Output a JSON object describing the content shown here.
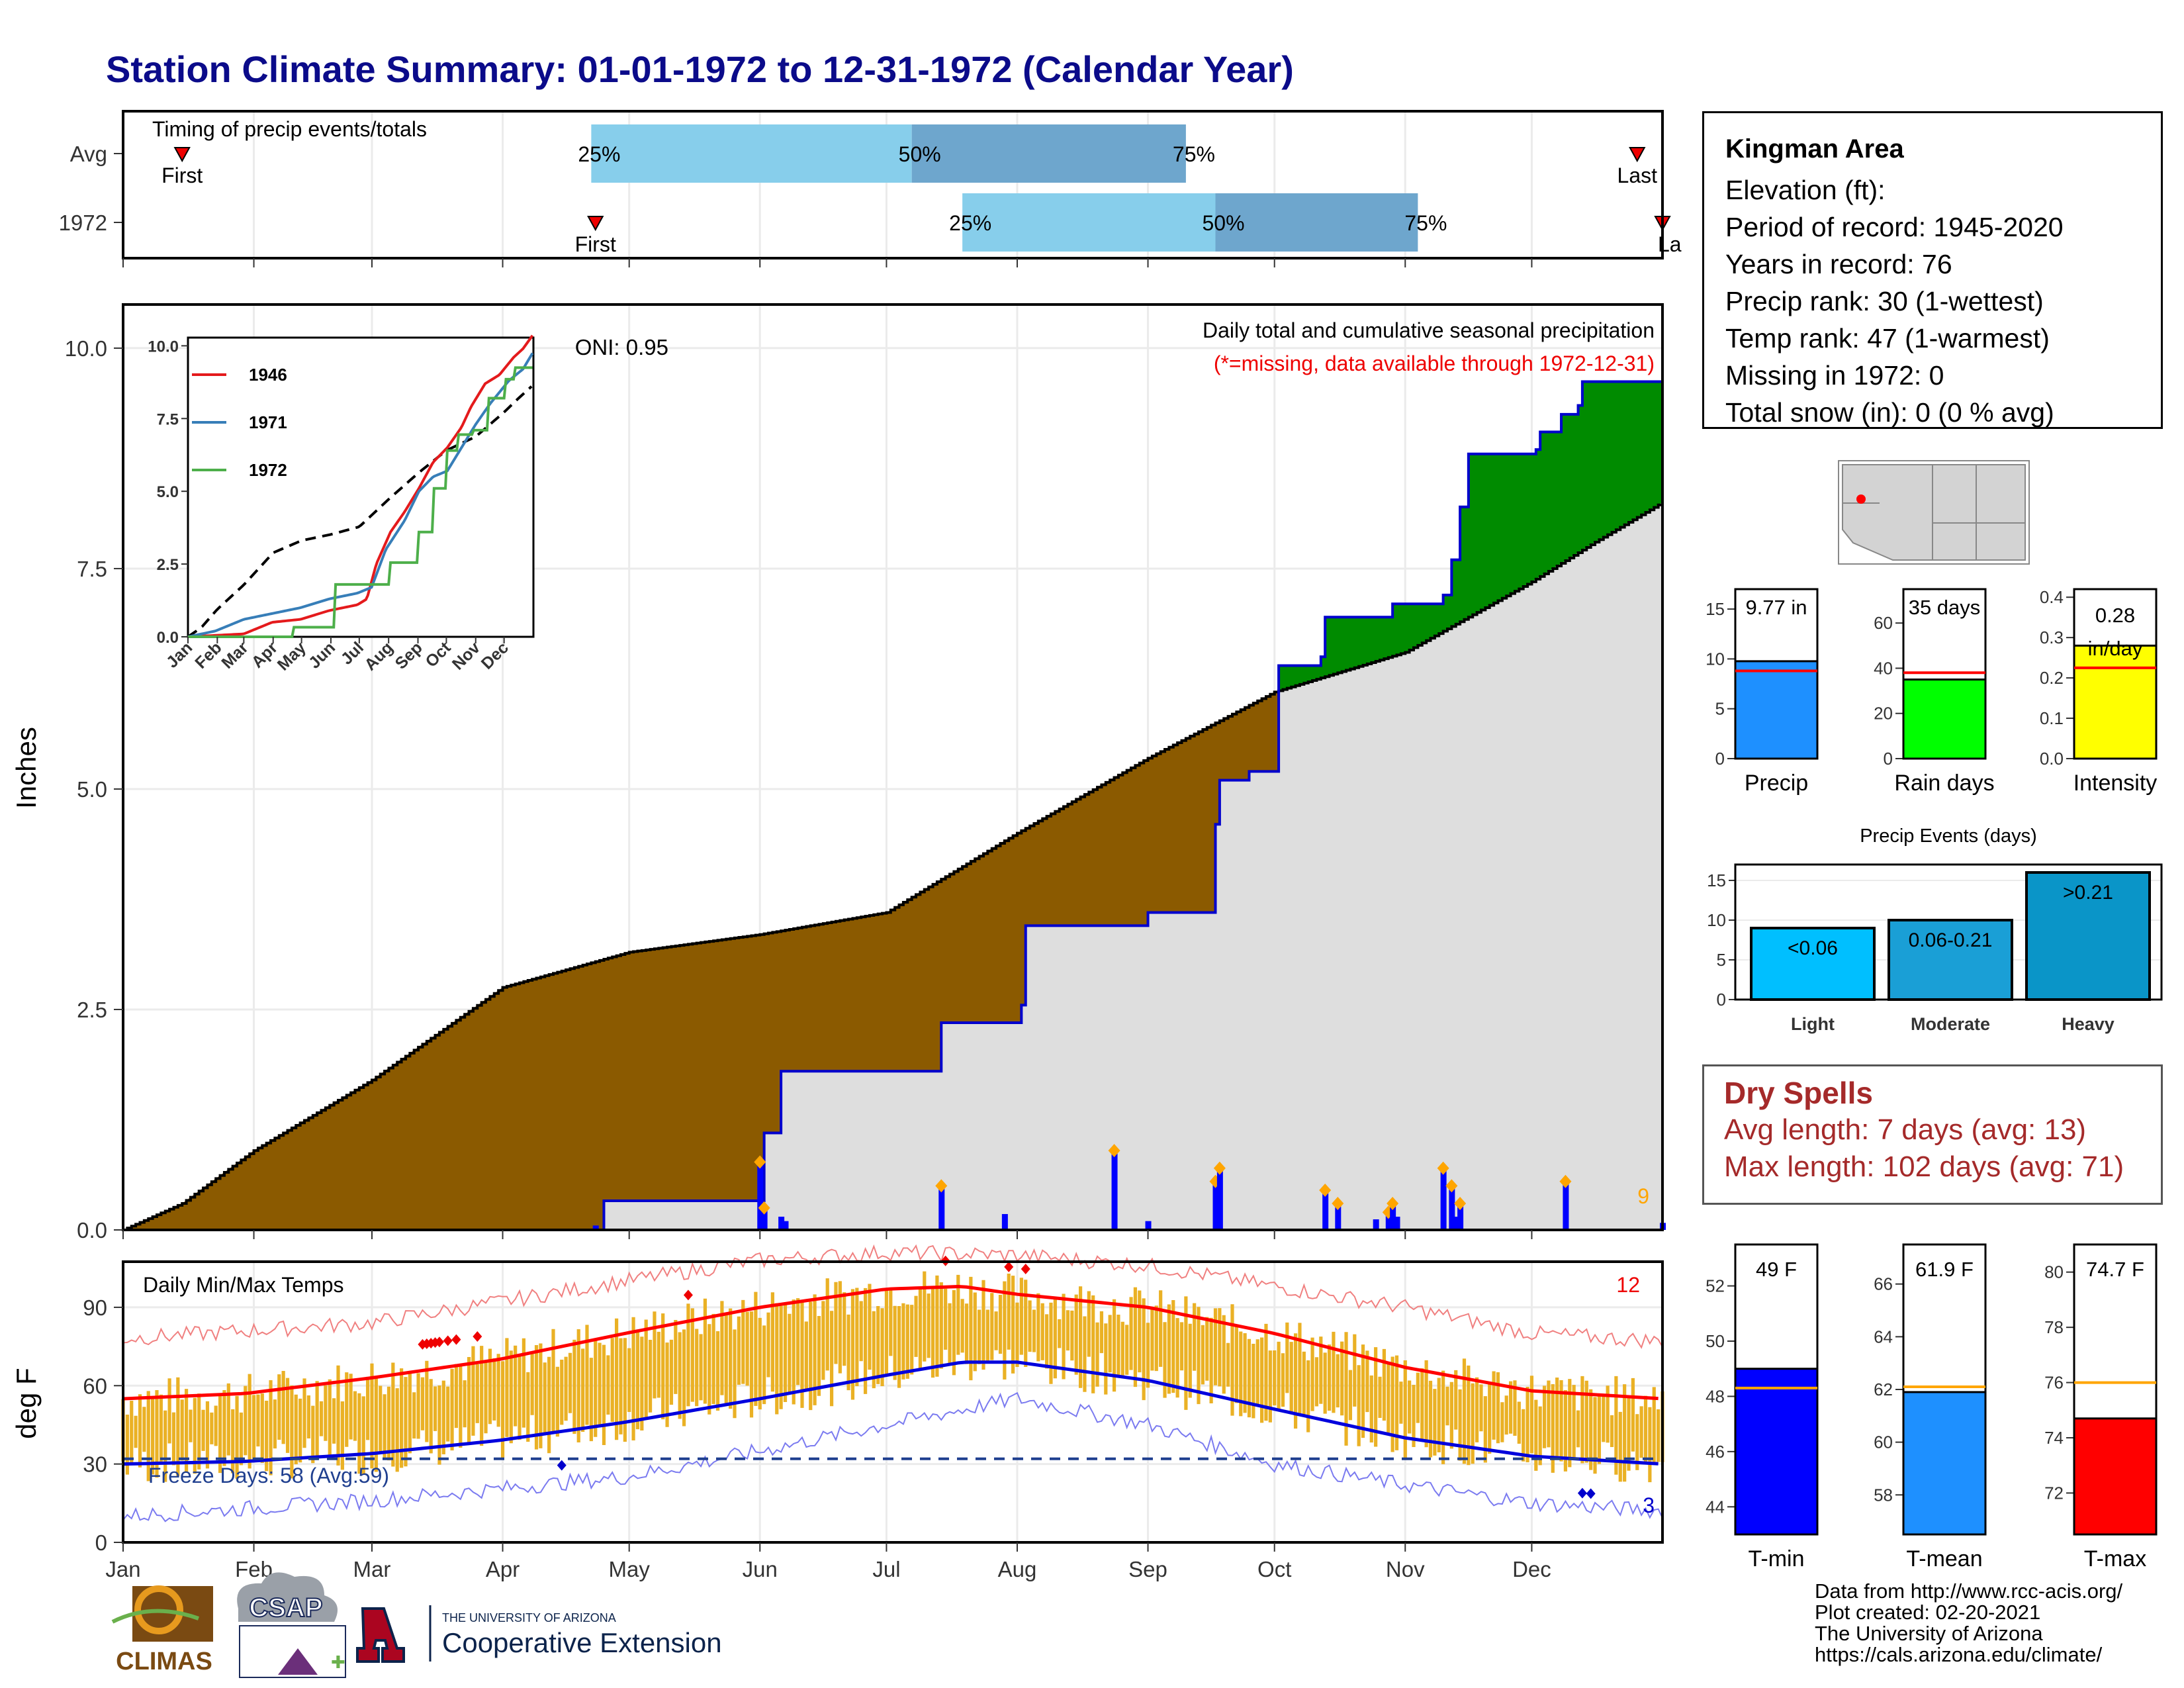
{
  "title": "Station Climate Summary: 01-01-1972 to 12-31-1972 (Calendar Year)",
  "timing": {
    "label": "Timing of precip events/totals",
    "rows": [
      {
        "name": "Avg",
        "first_label": "First",
        "last_label": "Last",
        "p25": "25%",
        "p50": "50%",
        "p75": "75%",
        "first_doy": 15,
        "p25_doy": 112,
        "p50_doy": 188,
        "p75_doy": 253,
        "last_doy": 360
      },
      {
        "name": "1972",
        "first_label": "First",
        "last_label": "La",
        "p25": "25%",
        "p50": "50%",
        "p75": "75%",
        "first_doy": 113,
        "p25_doy": 200,
        "p50_doy": 260,
        "p75_doy": 308,
        "last_doy": 366
      }
    ]
  },
  "precip_panel": {
    "ylabel": "Inches",
    "oni": "ONI: 0.95",
    "desc1": "Daily total and cumulative seasonal precipitation",
    "desc2": "(*=missing, data available through 1972-12-31)",
    "count_label": "9",
    "yticks": [
      "0.0",
      "2.5",
      "5.0",
      "7.5",
      "10.0"
    ]
  },
  "inset": {
    "yticks": [
      "0.0",
      "2.5",
      "5.0",
      "7.5",
      "10.0"
    ],
    "xticks": [
      "Jan",
      "Feb",
      "Mar",
      "Apr",
      "May",
      "Jun",
      "Jul",
      "Aug",
      "Sep",
      "Oct",
      "Nov",
      "Dec"
    ],
    "legend": [
      {
        "name": "1946",
        "color": "#e41a1c"
      },
      {
        "name": "1971",
        "color": "#377eb8"
      },
      {
        "name": "1972",
        "color": "#4daf4a"
      }
    ]
  },
  "temp_panel": {
    "ylabel": "deg F",
    "label": "Daily Min/Max Temps",
    "freeze": "Freeze Days: 58 (Avg:59)",
    "hot_count": "12",
    "cold_count": "3",
    "yticks": [
      "0",
      "30",
      "60",
      "90"
    ]
  },
  "months": [
    "Jan",
    "Feb",
    "Mar",
    "Apr",
    "May",
    "Jun",
    "Jul",
    "Aug",
    "Sep",
    "Oct",
    "Nov",
    "Dec"
  ],
  "station": {
    "name": "Kingman Area",
    "lines": [
      "Elevation (ft):",
      "Period of record: 1945-2020",
      "Years in record: 76",
      "Precip rank: 30 (1-wettest)",
      "Temp rank: 47 (1-warmest)",
      "Missing in 1972: 0",
      "Total snow (in): 0 (0 % avg)"
    ]
  },
  "mini_bars": [
    {
      "label": "Precip",
      "value_text": "9.77 in",
      "value": 9.77,
      "avg": 8.8,
      "ymax": 17,
      "yticks": [
        "0",
        "5",
        "10",
        "15"
      ],
      "ytick_vals": [
        0,
        5,
        10,
        15
      ],
      "color": "#1e90ff"
    },
    {
      "label": "Rain days",
      "value_text": "35 days",
      "value": 35,
      "avg": 38,
      "ymax": 75,
      "yticks": [
        "0",
        "20",
        "40",
        "60"
      ],
      "ytick_vals": [
        0,
        20,
        40,
        60
      ],
      "color": "#00ff00"
    },
    {
      "label": "Intensity",
      "value_text": "0.28 in/day",
      "value": 0.28,
      "avg": 0.225,
      "ymax": 0.42,
      "yticks": [
        "0.0",
        "0.1",
        "0.2",
        "0.3",
        "0.4"
      ],
      "ytick_vals": [
        0,
        0.1,
        0.2,
        0.3,
        0.4
      ],
      "color": "#ffff00"
    }
  ],
  "precip_events": {
    "title": "Precip Events (days)",
    "yticks": [
      "0",
      "5",
      "10",
      "15"
    ],
    "bars": [
      {
        "category": "Light",
        "label": "<0.06",
        "value": 9,
        "color": "#00bfff"
      },
      {
        "category": "Moderate",
        "label": "0.06-0.21",
        "value": 10,
        "color": "#1a9fd6"
      },
      {
        "category": "Heavy",
        "label": ">0.21",
        "value": 16,
        "color": "#0a95c8"
      }
    ]
  },
  "dry_spells": {
    "title": "Dry Spells",
    "avg": "Avg length: 7 days (avg: 13)",
    "max": "Max length: 102 days (avg: 71)"
  },
  "temp_bars": [
    {
      "label": "T-min",
      "value_text": "49 F",
      "value": 49,
      "avg": 48.3,
      "ymin": 43,
      "ymax": 53.5,
      "yticks": [
        "44",
        "46",
        "48",
        "50",
        "52"
      ],
      "ytick_vals": [
        44,
        46,
        48,
        50,
        52
      ],
      "color": "#0000ff"
    },
    {
      "label": "T-mean",
      "value_text": "61.9 F",
      "value": 61.9,
      "avg": 62.1,
      "ymin": 56.5,
      "ymax": 67.5,
      "yticks": [
        "58",
        "60",
        "62",
        "64",
        "66"
      ],
      "ytick_vals": [
        58,
        60,
        62,
        64,
        66
      ],
      "color": "#1e90ff"
    },
    {
      "label": "T-max",
      "value_text": "74.7 F",
      "value": 74.7,
      "avg": 76,
      "ymin": 70.5,
      "ymax": 81,
      "yticks": [
        "72",
        "74",
        "76",
        "78",
        "80"
      ],
      "ytick_vals": [
        72,
        74,
        76,
        78,
        80
      ],
      "color": "#ff0000"
    }
  ],
  "credits": [
    "Data from http://www.rcc-acis.org/",
    "Plot created: 02-20-2021",
    "The University of Arizona",
    "https://cals.arizona.edu/climate/"
  ],
  "logos": {
    "climas": "CLIMAS",
    "csap": "CSAP",
    "ua_small": "THE UNIVERSITY OF ARIZONA",
    "ua_big": "Cooperative Extension"
  },
  "chart_data": [
    {
      "type": "area",
      "title": "Daily total and cumulative seasonal precipitation",
      "ylabel": "Inches",
      "ylim": [
        0,
        10.6
      ],
      "x_units": "day of year",
      "avg_cumulative": {
        "x": [
          1,
          15,
          32,
          60,
          91,
          121,
          152,
          182,
          213,
          244,
          274,
          305,
          335,
          350,
          366
        ],
        "y": [
          0,
          0.3,
          0.9,
          1.7,
          2.75,
          3.15,
          3.35,
          3.6,
          4.5,
          5.35,
          6.1,
          6.55,
          7.35,
          7.8,
          8.25
        ]
      },
      "cumulative_1972": {
        "x": [
          1,
          113,
          115,
          152,
          153,
          157,
          188,
          195,
          214,
          215,
          244,
          260,
          261,
          268,
          275,
          285,
          286,
          294,
          302,
          314,
          316,
          318,
          320,
          336,
          337,
          342,
          346,
          347,
          366
        ],
        "y": [
          0,
          0,
          0.33,
          0.33,
          1.1,
          1.8,
          1.8,
          2.35,
          2.55,
          3.45,
          3.6,
          4.6,
          5.1,
          5.2,
          6.4,
          6.5,
          6.95,
          6.95,
          7.1,
          7.2,
          7.6,
          8.2,
          8.8,
          8.85,
          9.05,
          9.25,
          9.35,
          9.62,
          9.77
        ]
      },
      "daily_1972": {
        "x": [
          113,
          152,
          153,
          157,
          158,
          195,
          210,
          236,
          244,
          260,
          261,
          286,
          289,
          298,
          301,
          302,
          303,
          314,
          316,
          317,
          318,
          343,
          366
        ],
        "y": [
          0.05,
          0.77,
          0.25,
          0.15,
          0.1,
          0.5,
          0.18,
          0.9,
          0.1,
          0.55,
          0.7,
          0.45,
          0.3,
          0.12,
          0.2,
          0.3,
          0.15,
          0.7,
          0.5,
          0.15,
          0.3,
          0.55,
          0.08
        ]
      }
    },
    {
      "type": "line",
      "title": "",
      "ylim": [
        0,
        10.5
      ],
      "series": [
        {
          "name": "1946",
          "x": [
            1,
            60,
            75,
            90,
            120,
            150,
            180,
            190,
            200,
            215,
            230,
            245,
            260,
            275,
            290,
            300,
            315,
            330,
            345,
            355,
            366
          ],
          "y": [
            0,
            0.1,
            0.3,
            0.5,
            0.6,
            0.9,
            1.1,
            1.3,
            2.5,
            3.6,
            4.3,
            5.1,
            6.0,
            6.5,
            7.2,
            7.9,
            8.7,
            9.0,
            9.6,
            9.9,
            10.4
          ]
        },
        {
          "name": "1971",
          "x": [
            1,
            30,
            60,
            90,
            120,
            150,
            180,
            195,
            210,
            230,
            245,
            260,
            275,
            290,
            305,
            320,
            340,
            355,
            366
          ],
          "y": [
            0,
            0.2,
            0.6,
            0.8,
            1.0,
            1.3,
            1.5,
            1.7,
            3.0,
            4.0,
            5.0,
            5.5,
            5.7,
            6.5,
            7.3,
            8.0,
            8.8,
            9.2,
            9.8
          ]
        },
        {
          "name": "1972",
          "x": [
            1,
            113,
            152,
            157,
            195,
            215,
            244,
            261,
            275,
            286,
            302,
            318,
            337,
            347,
            366
          ],
          "y": [
            0,
            0.33,
            0.33,
            1.8,
            1.8,
            2.55,
            3.6,
            5.1,
            6.4,
            6.95,
            7.1,
            8.2,
            8.85,
            9.25,
            9.77
          ]
        }
      ]
    },
    {
      "type": "bar",
      "title": "Daily Min/Max Temps",
      "ylabel": "deg F",
      "ylim": [
        0,
        110
      ],
      "x_units": "day of year",
      "avg_max": {
        "x": [
          1,
          30,
          60,
          90,
          120,
          152,
          182,
          200,
          213,
          244,
          274,
          305,
          335,
          366
        ],
        "y": [
          55,
          57,
          63,
          70,
          80,
          90,
          97,
          98,
          95,
          90,
          80,
          67,
          58,
          55
        ]
      },
      "avg_min": {
        "x": [
          1,
          30,
          60,
          90,
          120,
          152,
          182,
          200,
          213,
          244,
          274,
          305,
          335,
          366
        ],
        "y": [
          30,
          31,
          34,
          39,
          46,
          55,
          64,
          69,
          69,
          62,
          51,
          40,
          33,
          30
        ]
      },
      "record_max": {
        "x": [
          1,
          60,
          120,
          152,
          182,
          213,
          244,
          274,
          305,
          335,
          366
        ],
        "y": [
          78,
          84,
          100,
          108,
          111,
          110,
          106,
          98,
          90,
          80,
          77
        ]
      },
      "record_min": {
        "x": [
          1,
          60,
          120,
          152,
          182,
          213,
          244,
          274,
          305,
          335,
          366
        ],
        "y": [
          10,
          16,
          25,
          35,
          45,
          55,
          45,
          30,
          22,
          15,
          12
        ]
      },
      "freeze_line": 32,
      "records_hot_doy": [
        72,
        73,
        74,
        75,
        76,
        78,
        80,
        85,
        135,
        196,
        211,
        215
      ],
      "records_cold_doy": [
        105,
        347,
        349
      ]
    },
    {
      "type": "bar",
      "title": "Precip Events (days)",
      "categories": [
        "Light",
        "Moderate",
        "Heavy"
      ],
      "values": [
        9,
        10,
        16
      ],
      "ylim": [
        0,
        17
      ]
    }
  ]
}
